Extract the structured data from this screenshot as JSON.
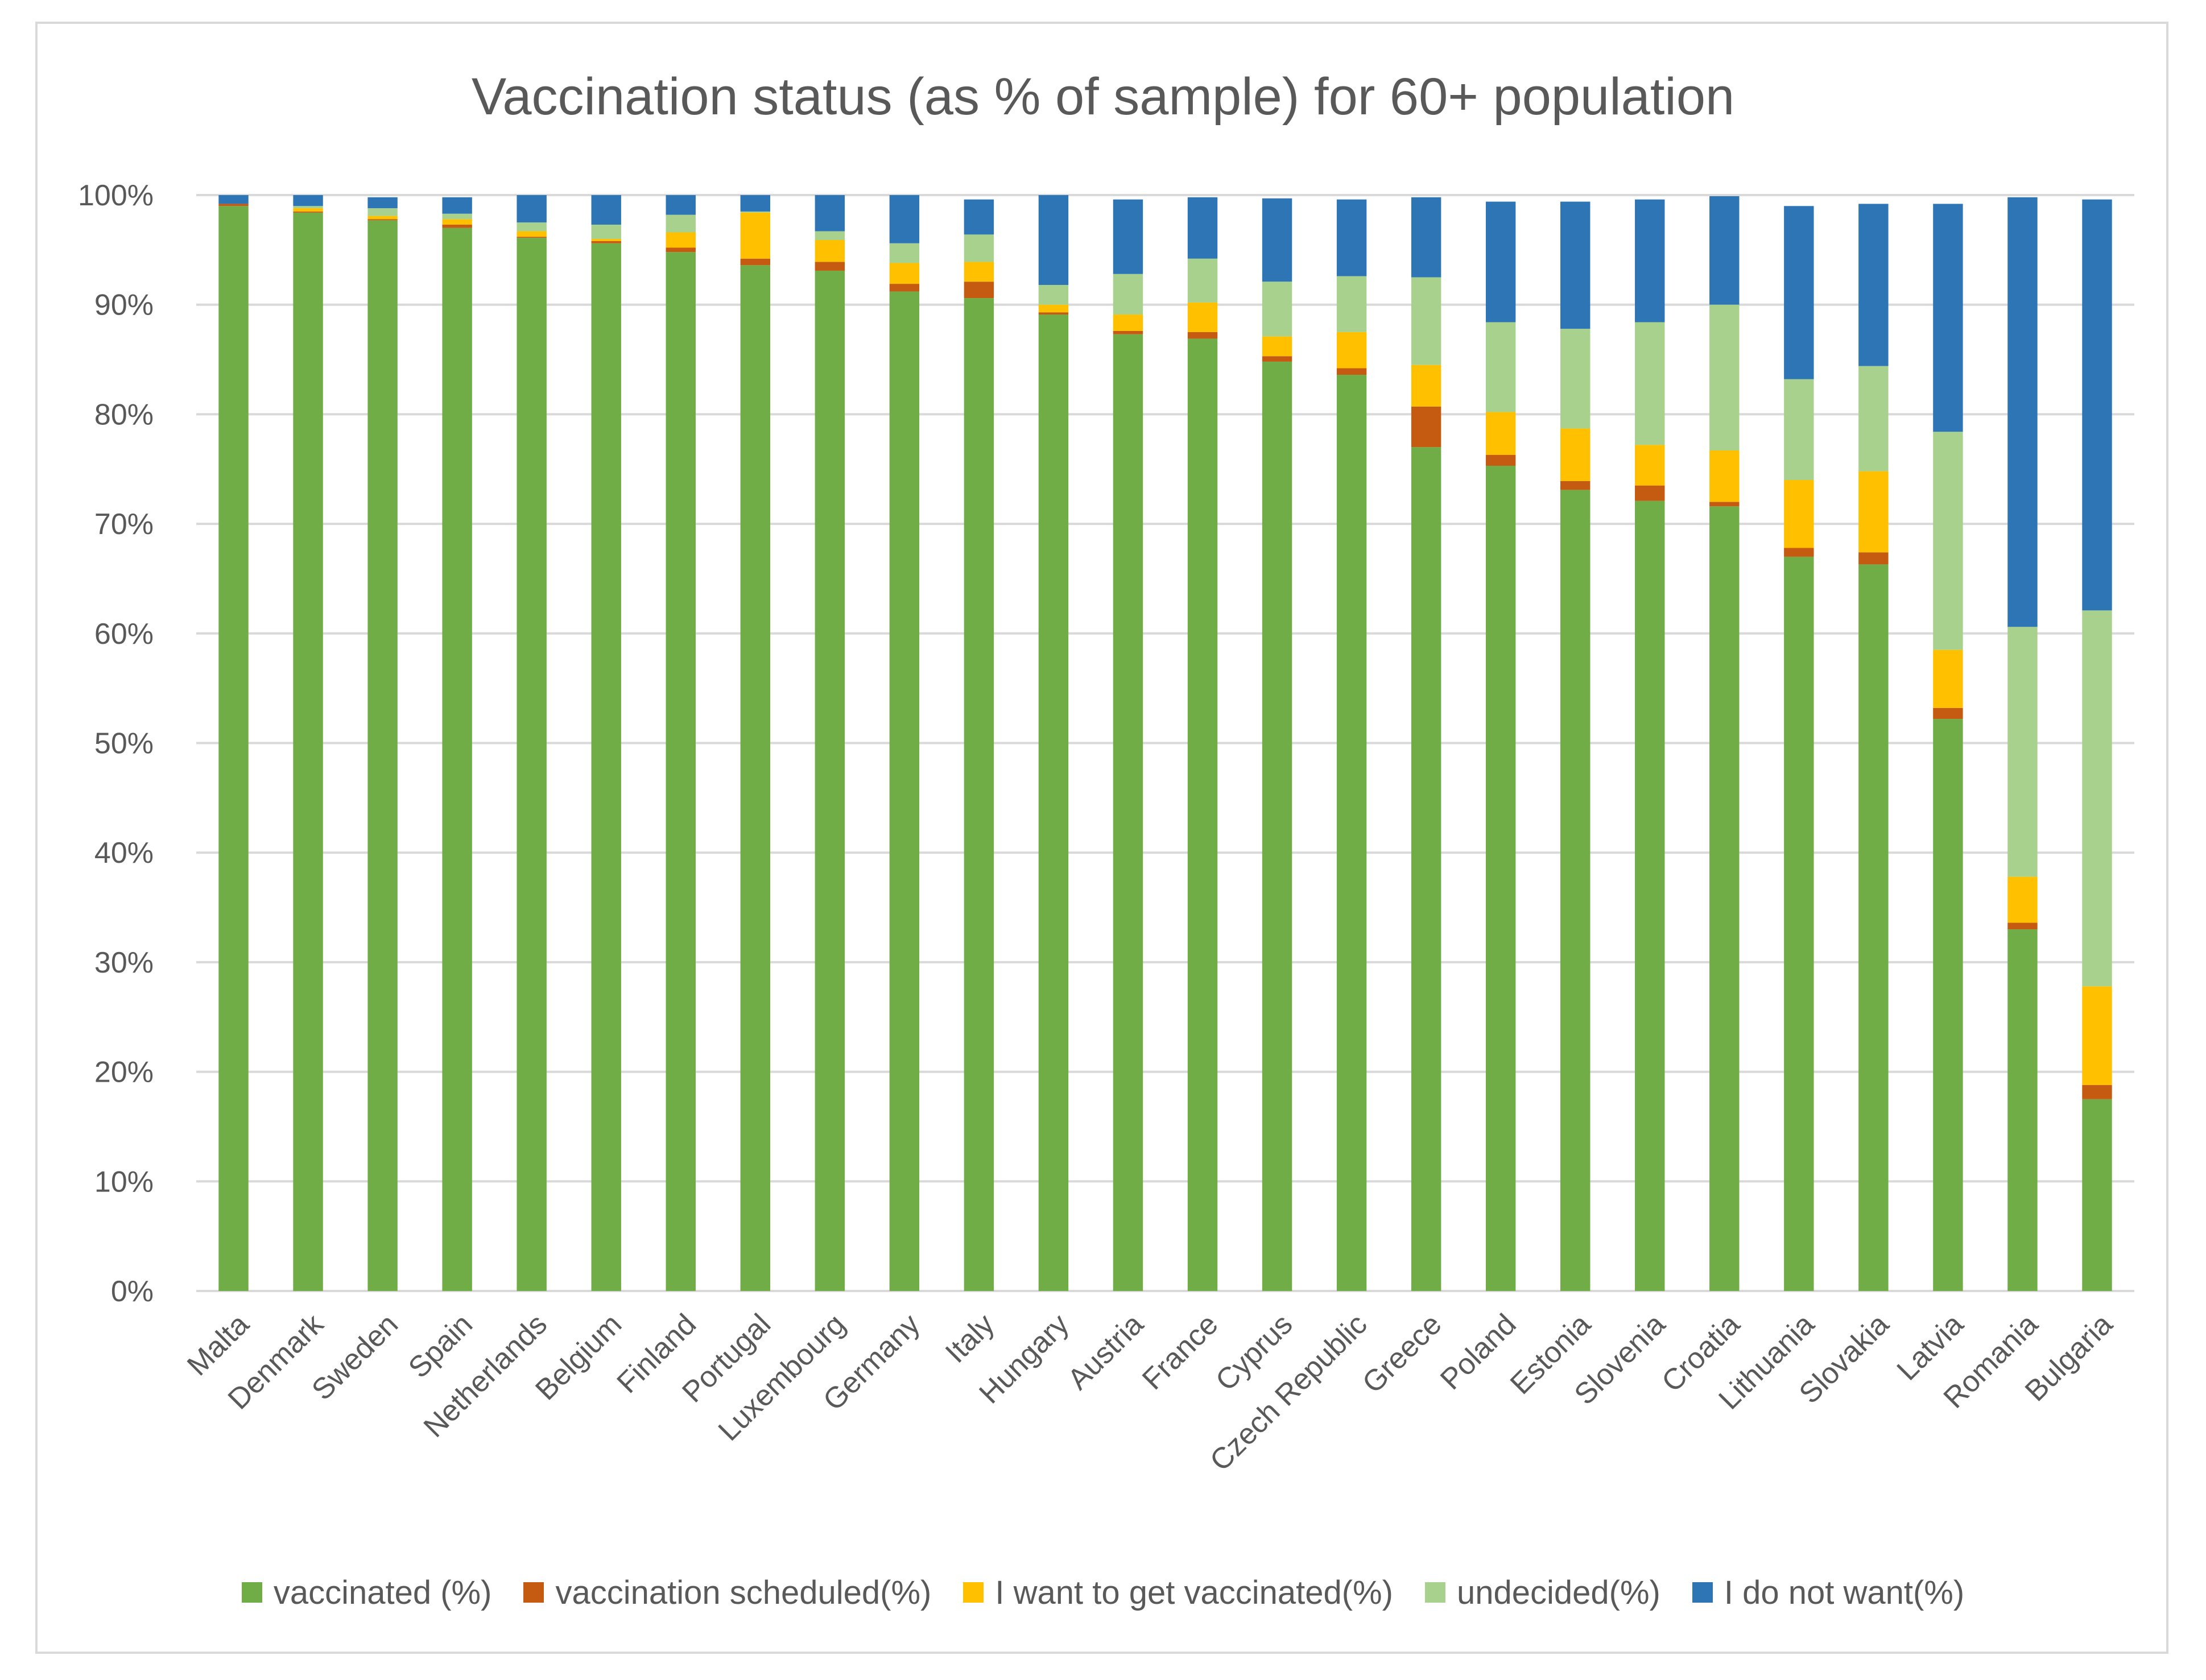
{
  "chart_data": {
    "type": "bar",
    "stacked": true,
    "title": "Vaccination status (as % of sample) for 60+ population",
    "xlabel": "",
    "ylabel": "",
    "ylim": [
      0,
      100
    ],
    "y_ticks": [
      "0%",
      "10%",
      "20%",
      "30%",
      "40%",
      "50%",
      "60%",
      "70%",
      "80%",
      "90%",
      "100%"
    ],
    "grid": true,
    "legend_position": "bottom",
    "categories": [
      "Malta",
      "Denmark",
      "Sweden",
      "Spain",
      "Netherlands",
      "Belgium",
      "Finland",
      "Portugal",
      "Luxembourg",
      "Germany",
      "Italy",
      "Hungary",
      "Austria",
      "France",
      "Cyprus",
      "Czech Republic",
      "Greece",
      "Poland",
      "Estonia",
      "Slovenia",
      "Croatia",
      "Lithuania",
      "Slovakia",
      "Latvia",
      "Romania",
      "Bulgaria"
    ],
    "series": [
      {
        "name": "vaccinated (%)",
        "color": "#70ad47",
        "values": [
          99.0,
          98.4,
          97.7,
          97.0,
          96.1,
          95.6,
          94.8,
          93.6,
          93.1,
          91.2,
          90.6,
          89.1,
          87.3,
          86.9,
          84.8,
          83.6,
          77.0,
          75.3,
          73.1,
          72.1,
          71.6,
          67.0,
          66.3,
          52.2,
          33.0,
          17.5
        ]
      },
      {
        "name": "vaccination scheduled(%)",
        "color": "#c55a11",
        "values": [
          0.2,
          0.1,
          0.1,
          0.3,
          0.1,
          0.2,
          0.4,
          0.6,
          0.8,
          0.7,
          1.5,
          0.2,
          0.3,
          0.6,
          0.5,
          0.6,
          3.7,
          1.0,
          0.8,
          1.4,
          0.4,
          0.8,
          1.1,
          1.0,
          0.6,
          1.3
        ]
      },
      {
        "name": "I want to get vaccinated(%)",
        "color": "#ffc000",
        "values": [
          0.0,
          0.3,
          0.3,
          0.5,
          0.5,
          0.2,
          1.4,
          4.2,
          2.0,
          1.9,
          1.8,
          0.7,
          1.5,
          2.7,
          1.8,
          3.3,
          3.8,
          3.9,
          4.8,
          3.7,
          4.7,
          6.2,
          7.4,
          5.3,
          4.2,
          9.0
        ]
      },
      {
        "name": "undecided(%)",
        "color": "#a9d18e",
        "values": [
          0.0,
          0.2,
          0.7,
          0.5,
          0.8,
          1.3,
          1.6,
          0.1,
          0.8,
          1.8,
          2.5,
          1.8,
          3.7,
          4.0,
          5.0,
          5.1,
          8.0,
          8.2,
          9.1,
          11.2,
          13.3,
          9.2,
          9.6,
          19.9,
          22.8,
          34.3
        ]
      },
      {
        "name": "I do not want(%)",
        "color": "#2e75b6",
        "values": [
          0.8,
          1.0,
          1.0,
          1.5,
          2.5,
          2.7,
          1.8,
          1.5,
          3.3,
          4.4,
          3.2,
          8.2,
          6.8,
          5.6,
          7.6,
          7.0,
          7.3,
          11.0,
          11.6,
          11.2,
          9.9,
          15.8,
          14.8,
          20.8,
          39.2,
          37.5
        ]
      }
    ]
  }
}
